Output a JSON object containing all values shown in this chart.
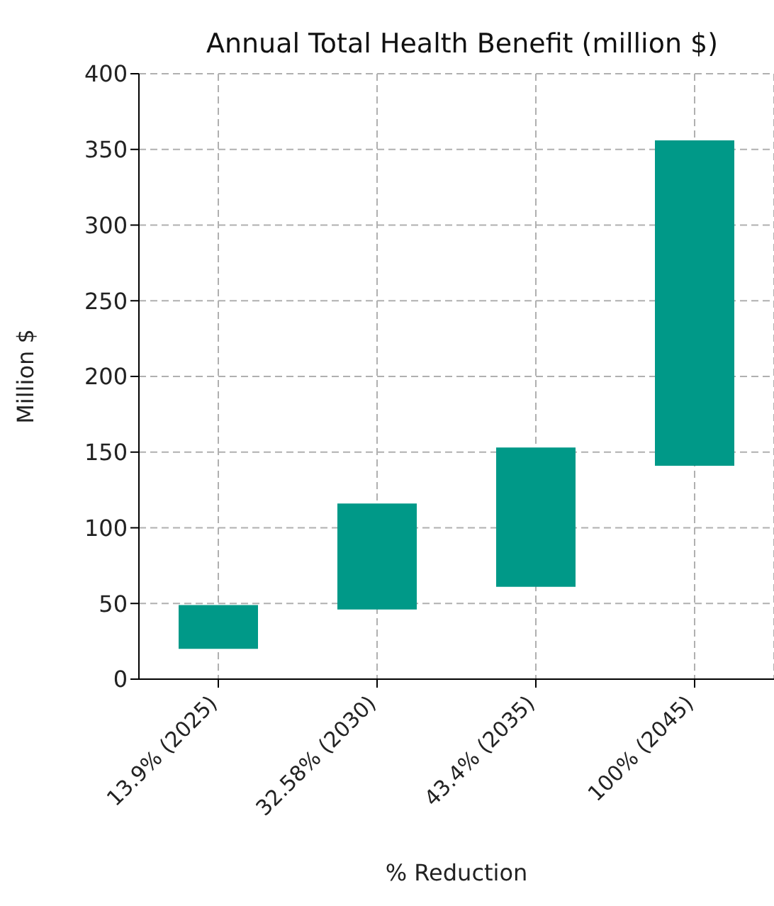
{
  "chart_data": {
    "type": "bar",
    "title": "Annual Total Health Benefit (million $)",
    "xlabel": "% Reduction",
    "ylabel": "Million $",
    "categories": [
      "13.9% (2025)",
      "32.58% (2030)",
      "43.4% (2035)",
      "100% (2045)"
    ],
    "base": [
      20,
      46,
      61,
      141
    ],
    "values": [
      29,
      70,
      92,
      215
    ],
    "color": "#009988",
    "ylim": [
      0,
      400
    ],
    "yticks": [
      0,
      50,
      100,
      150,
      200,
      250,
      300,
      350,
      400
    ],
    "grid": true
  }
}
